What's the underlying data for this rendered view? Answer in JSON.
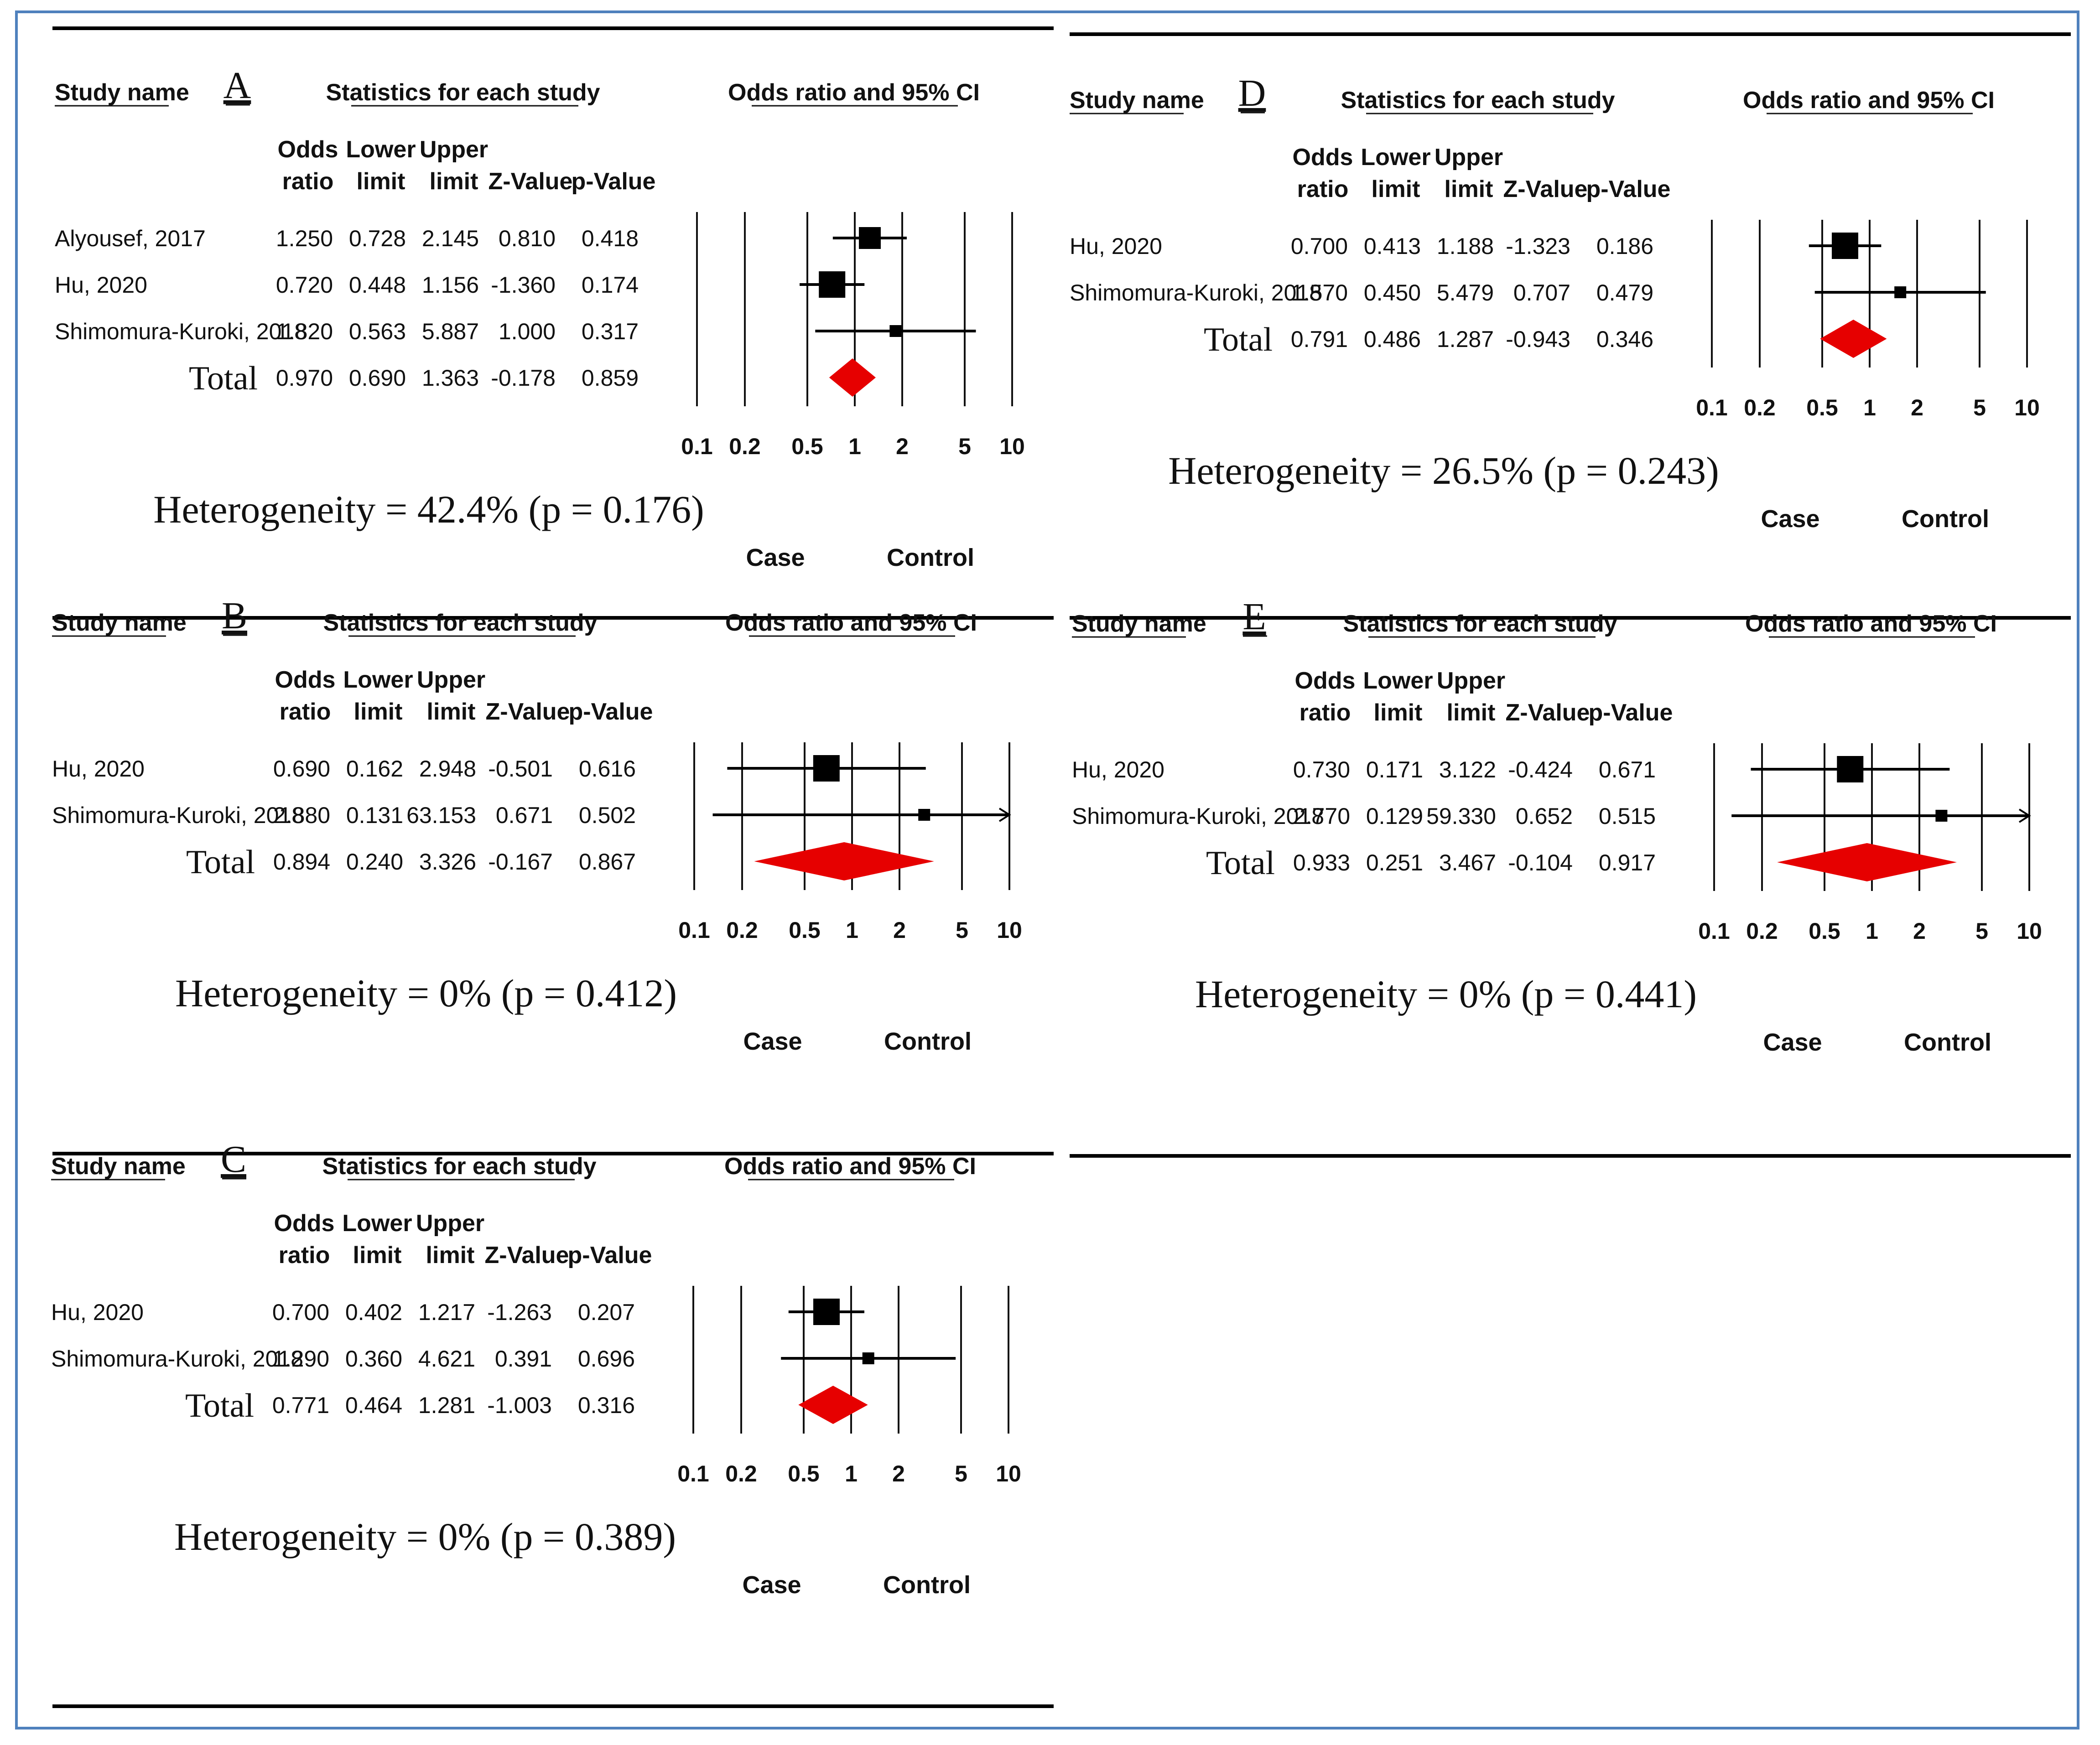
{
  "labels": {
    "study_name": "Study name",
    "stats_header": "Statistics for each study",
    "plot_header": "Odds ratio and 95% CI",
    "columns": [
      [
        "Odds",
        "ratio"
      ],
      [
        "Lower",
        "limit"
      ],
      [
        "Upper",
        "limit"
      ],
      [
        "",
        "Z-Value"
      ],
      [
        "",
        "p-Value"
      ]
    ],
    "favours_left": "Case",
    "favours_right": "Control",
    "x_ticks": [
      "0.1",
      "0.2",
      "0.5",
      "1",
      "2",
      "5",
      "10"
    ]
  },
  "chart_data": [
    {
      "type": "forest",
      "panel": "A",
      "studies": [
        {
          "name": "Alyousef, 2017",
          "odds_ratio": 1.25,
          "lower": 0.728,
          "upper": 2.145,
          "z": 0.81,
          "p": 0.418,
          "weight": "medium",
          "text": [
            "1.250",
            "0.728",
            "2.145",
            "0.810",
            "0.418"
          ]
        },
        {
          "name": "Hu, 2020",
          "odds_ratio": 0.72,
          "lower": 0.448,
          "upper": 1.156,
          "z": -1.36,
          "p": 0.174,
          "weight": "large",
          "text": [
            "0.720",
            "0.448",
            "1.156",
            "-1.360",
            "0.174"
          ]
        },
        {
          "name": "Shimomura-Kuroki, 2018",
          "odds_ratio": 1.82,
          "lower": 0.563,
          "upper": 5.887,
          "z": 1.0,
          "p": 0.317,
          "weight": "small",
          "text": [
            "1.820",
            "0.563",
            "5.887",
            "1.000",
            "0.317"
          ]
        }
      ],
      "total": {
        "label": "Total",
        "odds_ratio": 0.97,
        "lower": 0.69,
        "upper": 1.363,
        "z": -0.178,
        "p": 0.859,
        "text": [
          "0.970",
          "0.690",
          "1.363",
          "-0.178",
          "0.859"
        ]
      },
      "heterogeneity": "Heterogeneity = 42.4% (p = 0.176)",
      "x_scale": "log",
      "xlim": [
        0.1,
        10
      ]
    },
    {
      "type": "forest",
      "panel": "B",
      "studies": [
        {
          "name": "Hu, 2020",
          "odds_ratio": 0.69,
          "lower": 0.162,
          "upper": 2.948,
          "z": -0.501,
          "p": 0.616,
          "weight": "large",
          "text": [
            "0.690",
            "0.162",
            "2.948",
            "-0.501",
            "0.616"
          ]
        },
        {
          "name": "Shimomura-Kuroki, 2018",
          "odds_ratio": 2.88,
          "lower": 0.131,
          "upper": 63.153,
          "z": 0.671,
          "p": 0.502,
          "weight": "small",
          "text": [
            "2.880",
            "0.131",
            "63.153",
            "0.671",
            "0.502"
          ]
        }
      ],
      "total": {
        "label": "Total",
        "odds_ratio": 0.894,
        "lower": 0.24,
        "upper": 3.326,
        "z": -0.167,
        "p": 0.867,
        "text": [
          "0.894",
          "0.240",
          "3.326",
          "-0.167",
          "0.867"
        ]
      },
      "heterogeneity": "Heterogeneity = 0% (p = 0.412)",
      "x_scale": "log",
      "xlim": [
        0.1,
        10
      ]
    },
    {
      "type": "forest",
      "panel": "C",
      "studies": [
        {
          "name": "Hu, 2020",
          "odds_ratio": 0.7,
          "lower": 0.402,
          "upper": 1.217,
          "z": -1.263,
          "p": 0.207,
          "weight": "large",
          "text": [
            "0.700",
            "0.402",
            "1.217",
            "-1.263",
            "0.207"
          ]
        },
        {
          "name": "Shimomura-Kuroki, 2018",
          "odds_ratio": 1.29,
          "lower": 0.36,
          "upper": 4.621,
          "z": 0.391,
          "p": 0.696,
          "weight": "small",
          "text": [
            "1.290",
            "0.360",
            "4.621",
            "0.391",
            "0.696"
          ]
        }
      ],
      "total": {
        "label": "Total",
        "odds_ratio": 0.771,
        "lower": 0.464,
        "upper": 1.281,
        "z": -1.003,
        "p": 0.316,
        "text": [
          "0.771",
          "0.464",
          "1.281",
          "-1.003",
          "0.316"
        ]
      },
      "heterogeneity": "Heterogeneity = 0% (p = 0.389)",
      "x_scale": "log",
      "xlim": [
        0.1,
        10
      ]
    },
    {
      "type": "forest",
      "panel": "D",
      "studies": [
        {
          "name": "Hu, 2020",
          "odds_ratio": 0.7,
          "lower": 0.413,
          "upper": 1.188,
          "z": -1.323,
          "p": 0.186,
          "weight": "large",
          "text": [
            "0.700",
            "0.413",
            "1.188",
            "-1.323",
            "0.186"
          ]
        },
        {
          "name": "Shimomura-Kuroki, 2018",
          "odds_ratio": 1.57,
          "lower": 0.45,
          "upper": 5.479,
          "z": 0.707,
          "p": 0.479,
          "weight": "small",
          "text": [
            "1.570",
            "0.450",
            "5.479",
            "0.707",
            "0.479"
          ]
        }
      ],
      "total": {
        "label": "Total",
        "odds_ratio": 0.791,
        "lower": 0.486,
        "upper": 1.287,
        "z": -0.943,
        "p": 0.346,
        "text": [
          "0.791",
          "0.486",
          "1.287",
          "-0.943",
          "0.346"
        ]
      },
      "heterogeneity": "Heterogeneity = 26.5% (p = 0.243)",
      "x_scale": "log",
      "xlim": [
        0.1,
        10
      ]
    },
    {
      "type": "forest",
      "panel": "E",
      "studies": [
        {
          "name": "Hu, 2020",
          "odds_ratio": 0.73,
          "lower": 0.171,
          "upper": 3.122,
          "z": -0.424,
          "p": 0.671,
          "weight": "large",
          "text": [
            "0.730",
            "0.171",
            "3.122",
            "-0.424",
            "0.671"
          ]
        },
        {
          "name": "Shimomura-Kuroki, 2018",
          "odds_ratio": 2.77,
          "lower": 0.129,
          "upper": 59.33,
          "z": 0.652,
          "p": 0.515,
          "weight": "small",
          "text": [
            "2.770",
            "0.129",
            "59.330",
            "0.652",
            "0.515"
          ]
        }
      ],
      "total": {
        "label": "Total",
        "odds_ratio": 0.933,
        "lower": 0.251,
        "upper": 3.467,
        "z": -0.104,
        "p": 0.917,
        "text": [
          "0.933",
          "0.251",
          "3.467",
          "-0.104",
          "0.917"
        ]
      },
      "heterogeneity": "Heterogeneity = 0% (p = 0.441)",
      "x_scale": "log",
      "xlim": [
        0.1,
        10
      ]
    }
  ],
  "colors": {
    "frame": "#4f81bd",
    "marker": "#000000",
    "diamond": "#e60000",
    "rule": "#000000"
  }
}
